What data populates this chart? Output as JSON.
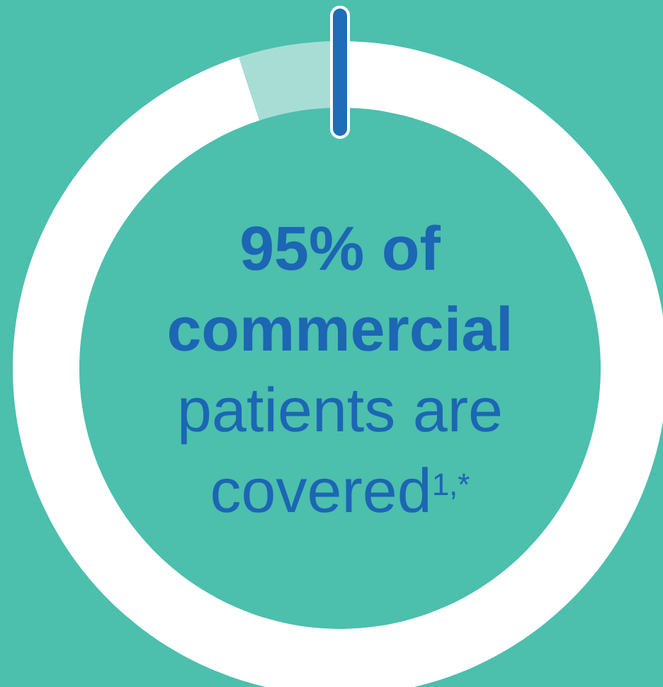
{
  "chart_data": {
    "type": "donut",
    "title": "95% of commercial",
    "subtitle": "patients are covered$^{1,*}$",
    "categories": [
      null,
      null
    ],
    "values": [
      95,
      5
    ],
    "colors": [
      "#ffffff",
      "#a8ddd5"
    ]
  }
}
